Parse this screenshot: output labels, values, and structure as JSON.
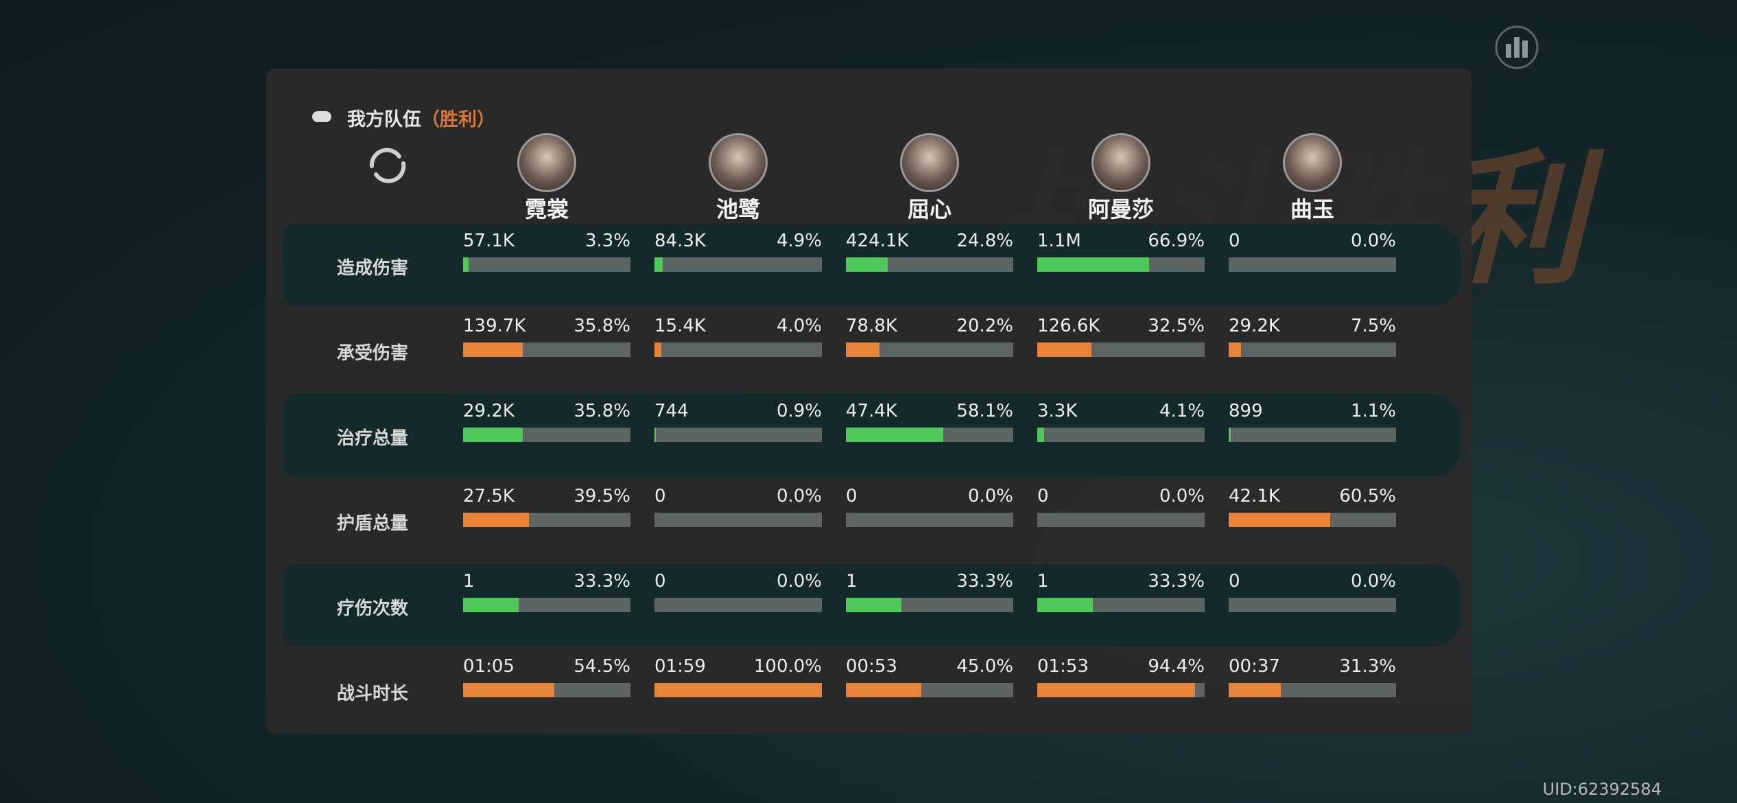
{
  "header": {
    "team": "我方队伍",
    "result": "（胜利）",
    "banner": "战斗胜利"
  },
  "heroes": [
    "霓裳",
    "池鹭",
    "屈心",
    "阿曼莎",
    "曲玉"
  ],
  "stats": [
    {
      "label": "造成伤害",
      "color": "#4fc95a",
      "cells": [
        [
          "57.1K",
          "3.3%"
        ],
        [
          "84.3K",
          "4.9%"
        ],
        [
          "424.1K",
          "24.8%"
        ],
        [
          "1.1M",
          "66.9%"
        ],
        [
          "0",
          "0.0%"
        ]
      ]
    },
    {
      "label": "承受伤害",
      "color": "#e8843a",
      "cells": [
        [
          "139.7K",
          "35.8%"
        ],
        [
          "15.4K",
          "4.0%"
        ],
        [
          "78.8K",
          "20.2%"
        ],
        [
          "126.6K",
          "32.5%"
        ],
        [
          "29.2K",
          "7.5%"
        ]
      ]
    },
    {
      "label": "治疗总量",
      "color": "#4fc95a",
      "cells": [
        [
          "29.2K",
          "35.8%"
        ],
        [
          "744",
          "0.9%"
        ],
        [
          "47.4K",
          "58.1%"
        ],
        [
          "3.3K",
          "4.1%"
        ],
        [
          "899",
          "1.1%"
        ]
      ]
    },
    {
      "label": "护盾总量",
      "color": "#e8843a",
      "cells": [
        [
          "27.5K",
          "39.5%"
        ],
        [
          "0",
          "0.0%"
        ],
        [
          "0",
          "0.0%"
        ],
        [
          "0",
          "0.0%"
        ],
        [
          "42.1K",
          "60.5%"
        ]
      ]
    },
    {
      "label": "疗伤次数",
      "color": "#4fc95a",
      "cells": [
        [
          "1",
          "33.3%"
        ],
        [
          "0",
          "0.0%"
        ],
        [
          "1",
          "33.3%"
        ],
        [
          "1",
          "33.3%"
        ],
        [
          "0",
          "0.0%"
        ]
      ]
    },
    {
      "label": "战斗时长",
      "color": "#e8843a",
      "cells": [
        [
          "01:05",
          "54.5%"
        ],
        [
          "01:59",
          "100.0%"
        ],
        [
          "00:53",
          "45.0%"
        ],
        [
          "01:53",
          "94.4%"
        ],
        [
          "00:37",
          "31.3%"
        ]
      ]
    }
  ],
  "uid": "UID:62392584"
}
